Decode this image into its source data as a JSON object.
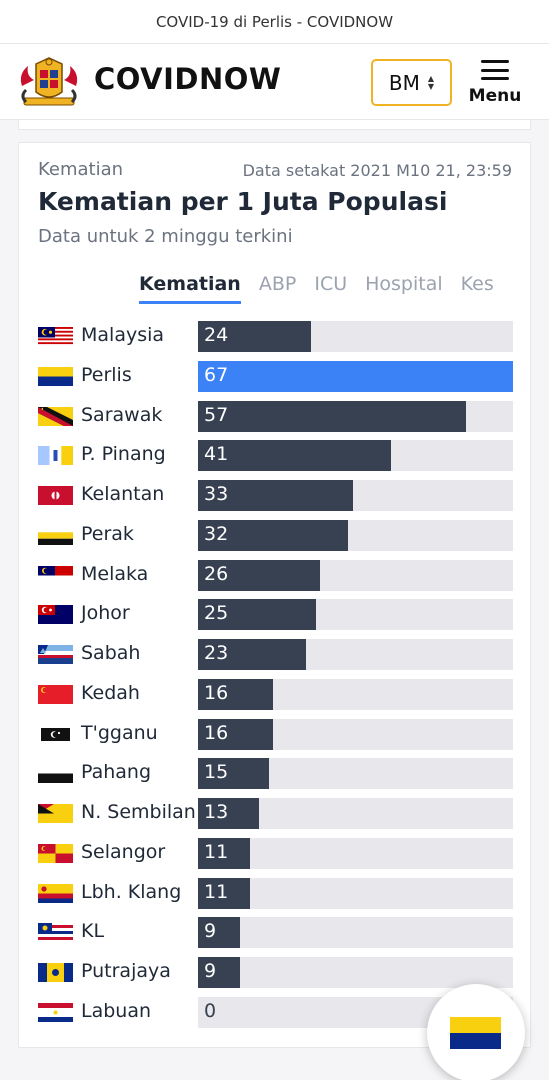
{
  "tab_title": "COVID-19 di Perlis - COVIDNOW",
  "header": {
    "brand": "COVIDNOW",
    "language": "BM",
    "menu_label": "Menu"
  },
  "card": {
    "kicker": "Kematian",
    "timestamp": "Data setakat 2021 M10 21, 23:59",
    "title": "Kematian per 1 Juta Populasi",
    "subtitle": "Data untuk 2 minggu terkini",
    "tabs": [
      {
        "label": "Kematian",
        "active": true
      },
      {
        "label": "ABP",
        "active": false
      },
      {
        "label": "ICU",
        "active": false
      },
      {
        "label": "Hospital",
        "active": false
      },
      {
        "label": "Kes",
        "active": false
      }
    ]
  },
  "chart_data": {
    "type": "bar",
    "orientation": "horizontal",
    "categories": [
      "Malaysia",
      "Perlis",
      "Sarawak",
      "P. Pinang",
      "Kelantan",
      "Perak",
      "Melaka",
      "Johor",
      "Sabah",
      "Kedah",
      "T'gganu",
      "Pahang",
      "N. Sembilan",
      "Selangor",
      "Lbh. Klang",
      "KL",
      "Putrajaya",
      "Labuan"
    ],
    "values": [
      24,
      67,
      57,
      41,
      33,
      32,
      26,
      25,
      23,
      16,
      16,
      15,
      13,
      11,
      11,
      9,
      9,
      0
    ],
    "value_labels": [
      "24",
      "67",
      "57",
      "41",
      "33",
      "32",
      "26",
      "25",
      "23",
      "16",
      "16",
      "15",
      "13",
      "11",
      "11",
      "9",
      "9",
      "0"
    ],
    "highlight": "Perlis",
    "max_value": 67,
    "colors": {
      "bar": "#374151",
      "highlight": "#3b82f6",
      "track": "#e8e8ec"
    }
  },
  "flags": [
    "malaysia-flag",
    "perlis-flag",
    "sarawak-flag",
    "penang-flag",
    "kelantan-flag",
    "perak-flag",
    "melaka-flag",
    "johor-flag",
    "sabah-flag",
    "kedah-flag",
    "terengganu-flag",
    "pahang-flag",
    "negeri-sembilan-flag",
    "selangor-flag",
    "labuan-klang-flag",
    "kl-flag",
    "putrajaya-flag",
    "labuan-flag"
  ],
  "fab_icon": "perlis-flag"
}
